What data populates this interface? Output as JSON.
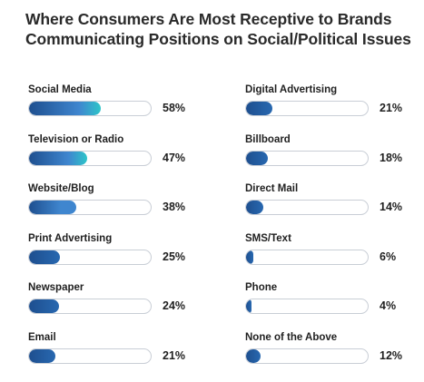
{
  "title_line1": "Where Consumers Are Most Receptive to Brands",
  "title_line2": "Communicating Positions on Social/Political Issues",
  "colors": {
    "bar_start": "#1e4f8f",
    "bar_mid": "#3f86cf",
    "bar_end": "#2ec5c9",
    "track_border": "#c9ced6"
  },
  "chart_data": {
    "type": "bar",
    "orientation": "horizontal",
    "xlim": [
      0,
      100
    ],
    "unit": "%",
    "title": "Where Consumers Are Most Receptive to Brands Communicating Positions on Social/Political Issues",
    "categories": [
      "Social Media",
      "Television or Radio",
      "Website/Blog",
      "Print Advertising",
      "Newspaper",
      "Email",
      "Digital Advertising",
      "Billboard",
      "Direct Mail",
      "SMS/Text",
      "Phone",
      "None of the Above"
    ],
    "values": [
      58,
      47,
      38,
      25,
      24,
      21,
      21,
      18,
      14,
      6,
      4,
      12
    ],
    "labels": [
      "58%",
      "47%",
      "38%",
      "25%",
      "24%",
      "21%",
      "21%",
      "18%",
      "14%",
      "6%",
      "4%",
      "12%"
    ]
  }
}
